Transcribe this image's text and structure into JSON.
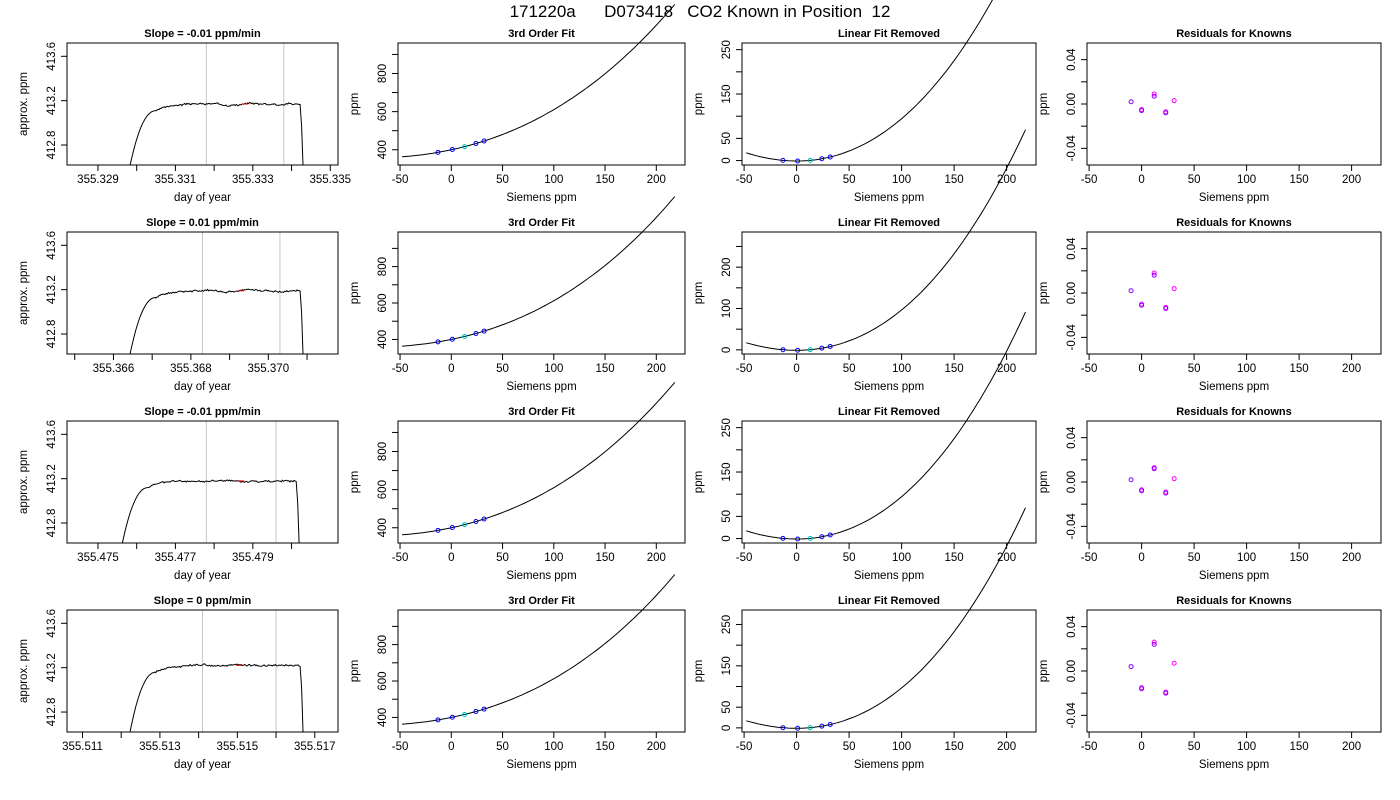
{
  "title": "171220a      D073418   CO2 Known in Position  12",
  "chart_data": {
    "rows": [
      {
        "time_panel": {
          "type": "line",
          "title": "Slope =  -0.01  ppm/min",
          "xlabel": "day of year",
          "ylabel": "approx. ppm",
          "xlim": [
            355.3282,
            355.3352
          ],
          "ylim": [
            412.62,
            413.72
          ],
          "xticks": [
            355.329,
            355.331,
            355.333,
            355.335
          ],
          "xtick_labels": [
            "355.329",
            "355.331",
            "355.333",
            "355.335"
          ],
          "minor_xticks": [
            355.33,
            355.332,
            355.334
          ],
          "yticks": [
            412.8,
            413.2,
            413.6
          ],
          "ytick_labels": [
            "412.8",
            "413.2",
            "413.6"
          ],
          "vlines": [
            355.3318,
            355.3338
          ],
          "rise_start": 355.3298,
          "plateau_start": 355.3305,
          "fall_end": 355.3343,
          "plateau_level": 413.17,
          "seed": 3
        },
        "fit_panel": {
          "type": "line",
          "title": "3rd Order Fit",
          "xlabel": "Siemens ppm",
          "ylabel": "ppm",
          "xlim": [
            -52,
            228
          ],
          "ylim": [
            320,
            960
          ],
          "xticks": [
            -50,
            0,
            50,
            100,
            150,
            200
          ],
          "yticks": [
            400,
            600,
            800
          ],
          "minor_yticks": [
            500,
            700,
            900
          ],
          "curve": {
            "a": 400,
            "b": 1.15,
            "c": 0.0085,
            "d": 1.04e-05,
            "x_from": -48,
            "x_to": 218
          },
          "points_x": [
            -13,
            1,
            13,
            24,
            32
          ]
        },
        "linear_panel": {
          "type": "line",
          "title": "Linear Fit Removed",
          "xlabel": "Siemens ppm",
          "ylabel": "ppm",
          "xlim": [
            -52,
            228
          ],
          "ylim": [
            -10,
            265
          ],
          "xticks": [
            -50,
            0,
            50,
            100,
            150,
            200
          ],
          "yticks": [
            0,
            50,
            150,
            250
          ],
          "minor_yticks": [
            100,
            200
          ],
          "curve": {
            "c": 0.0085,
            "d": 1.04e-05,
            "x_from": -48,
            "x_to": 218
          },
          "points_x": [
            -13,
            1,
            13,
            24,
            32
          ]
        },
        "residual_panel": {
          "type": "scatter",
          "title": "Residuals for Knowns",
          "xlabel": "Siemens ppm",
          "ylabel": "ppm",
          "xlim": [
            -52,
            228
          ],
          "ylim": [
            -0.055,
            0.055
          ],
          "xticks": [
            -50,
            0,
            50,
            100,
            150,
            200
          ],
          "yticks": [
            -0.04,
            0.0,
            0.04
          ],
          "ytick_labels": [
            "-0.04",
            "0.00",
            "0.04"
          ],
          "minor_yticks": [
            -0.02,
            0.02
          ],
          "points": [
            {
              "x": -10,
              "y": 0.002
            },
            {
              "x": 0,
              "y": -0.005
            },
            {
              "x": 0,
              "y": -0.006
            },
            {
              "x": 12,
              "y": 0.009
            },
            {
              "x": 12,
              "y": 0.007
            },
            {
              "x": 23,
              "y": -0.007
            },
            {
              "x": 23,
              "y": -0.008
            },
            {
              "x": 31,
              "y": 0.003
            }
          ]
        }
      },
      {
        "time_panel": {
          "type": "line",
          "title": "Slope =  0.01  ppm/min",
          "xlabel": "day of year",
          "ylabel": "approx. ppm",
          "xlim": [
            355.3648,
            355.3718
          ],
          "ylim": [
            412.62,
            413.72
          ],
          "xticks": [
            355.366,
            355.368,
            355.37
          ],
          "xtick_labels": [
            "355.366",
            "355.368",
            "355.370"
          ],
          "minor_xticks": [
            355.365,
            355.367,
            355.369,
            355.371
          ],
          "yticks": [
            412.8,
            413.2,
            413.6
          ],
          "ytick_labels": [
            "412.8",
            "413.2",
            "413.6"
          ],
          "vlines": [
            355.3683,
            355.3703
          ],
          "rise_start": 355.3664,
          "plateau_start": 355.3671,
          "fall_end": 355.3709,
          "plateau_level": 413.19,
          "seed": 7
        },
        "fit_panel": {
          "type": "line",
          "title": "3rd Order Fit",
          "xlabel": "Siemens ppm",
          "ylabel": "ppm",
          "xlim": [
            -52,
            228
          ],
          "ylim": [
            320,
            990
          ],
          "xticks": [
            -50,
            0,
            50,
            100,
            150,
            200
          ],
          "yticks": [
            400,
            600,
            800
          ],
          "minor_yticks": [
            500,
            700,
            900
          ],
          "curve": {
            "a": 400,
            "b": 1.15,
            "c": 0.0085,
            "d": 1.25e-05,
            "x_from": -48,
            "x_to": 218
          },
          "points_x": [
            -13,
            1,
            13,
            24,
            32
          ]
        },
        "linear_panel": {
          "type": "line",
          "title": "Linear Fit Removed",
          "xlabel": "Siemens ppm",
          "ylabel": "ppm",
          "xlim": [
            -52,
            228
          ],
          "ylim": [
            -10,
            285
          ],
          "xticks": [
            -50,
            0,
            50,
            100,
            150,
            200
          ],
          "yticks": [
            0,
            100,
            200
          ],
          "minor_yticks": [
            50,
            150,
            250
          ],
          "curve": {
            "c": 0.0085,
            "d": 1.25e-05,
            "x_from": -48,
            "x_to": 218
          },
          "points_x": [
            -13,
            1,
            13,
            24,
            32
          ]
        },
        "residual_panel": {
          "type": "scatter",
          "title": "Residuals for Knowns",
          "xlabel": "Siemens ppm",
          "ylabel": "ppm",
          "xlim": [
            -52,
            228
          ],
          "ylim": [
            -0.055,
            0.055
          ],
          "xticks": [
            -50,
            0,
            50,
            100,
            150,
            200
          ],
          "yticks": [
            -0.04,
            0.0,
            0.04
          ],
          "ytick_labels": [
            "-0.04",
            "0.00",
            "0.04"
          ],
          "minor_yticks": [
            -0.02,
            0.02
          ],
          "points": [
            {
              "x": -10,
              "y": 0.002
            },
            {
              "x": 0,
              "y": -0.01
            },
            {
              "x": 0,
              "y": -0.011
            },
            {
              "x": 12,
              "y": 0.018
            },
            {
              "x": 12,
              "y": 0.016
            },
            {
              "x": 23,
              "y": -0.013
            },
            {
              "x": 23,
              "y": -0.014
            },
            {
              "x": 31,
              "y": 0.004
            }
          ]
        }
      },
      {
        "time_panel": {
          "type": "line",
          "title": "Slope =  -0.01  ppm/min",
          "xlabel": "day of year",
          "ylabel": "approx. ppm",
          "xlim": [
            355.4742,
            355.4812
          ],
          "ylim": [
            412.62,
            413.72
          ],
          "xticks": [
            355.475,
            355.477,
            355.479
          ],
          "xtick_labels": [
            "355.475",
            "355.477",
            "355.479"
          ],
          "minor_xticks": [
            355.476,
            355.478,
            355.48
          ],
          "yticks": [
            412.8,
            413.2,
            413.6
          ],
          "ytick_labels": [
            "412.8",
            "413.2",
            "413.6"
          ],
          "vlines": [
            355.4778,
            355.4796
          ],
          "rise_start": 355.4756,
          "plateau_start": 355.4763,
          "fall_end": 355.4802,
          "plateau_level": 413.18,
          "seed": 11
        },
        "fit_panel": {
          "type": "line",
          "title": "3rd Order Fit",
          "xlabel": "Siemens ppm",
          "ylabel": "ppm",
          "xlim": [
            -52,
            228
          ],
          "ylim": [
            320,
            960
          ],
          "xticks": [
            -50,
            0,
            50,
            100,
            150,
            200
          ],
          "yticks": [
            400,
            600,
            800
          ],
          "minor_yticks": [
            500,
            700,
            900
          ],
          "curve": {
            "a": 400,
            "b": 1.15,
            "c": 0.0085,
            "d": 1.04e-05,
            "x_from": -48,
            "x_to": 218
          },
          "points_x": [
            -13,
            1,
            13,
            24,
            32
          ]
        },
        "linear_panel": {
          "type": "line",
          "title": "Linear Fit Removed",
          "xlabel": "Siemens ppm",
          "ylabel": "ppm",
          "xlim": [
            -52,
            228
          ],
          "ylim": [
            -10,
            265
          ],
          "xticks": [
            -50,
            0,
            50,
            100,
            150,
            200
          ],
          "yticks": [
            0,
            50,
            150,
            250
          ],
          "minor_yticks": [
            100,
            200
          ],
          "curve": {
            "c": 0.0085,
            "d": 1.04e-05,
            "x_from": -48,
            "x_to": 218
          },
          "points_x": [
            -13,
            1,
            13,
            24,
            32
          ]
        },
        "residual_panel": {
          "type": "scatter",
          "title": "Residuals for Knowns",
          "xlabel": "Siemens ppm",
          "ylabel": "ppm",
          "xlim": [
            -52,
            228
          ],
          "ylim": [
            -0.055,
            0.055
          ],
          "xticks": [
            -50,
            0,
            50,
            100,
            150,
            200
          ],
          "yticks": [
            -0.04,
            0.0,
            0.04
          ],
          "ytick_labels": [
            "-0.04",
            "0.00",
            "0.04"
          ],
          "minor_yticks": [
            -0.02,
            0.02
          ],
          "points": [
            {
              "x": -10,
              "y": 0.002
            },
            {
              "x": 0,
              "y": -0.007
            },
            {
              "x": 0,
              "y": -0.008
            },
            {
              "x": 12,
              "y": 0.013
            },
            {
              "x": 12,
              "y": 0.012
            },
            {
              "x": 23,
              "y": -0.009
            },
            {
              "x": 23,
              "y": -0.01
            },
            {
              "x": 31,
              "y": 0.003
            }
          ]
        }
      },
      {
        "time_panel": {
          "type": "line",
          "title": "Slope =  0  ppm/min",
          "xlabel": "day of year",
          "ylabel": "approx. ppm",
          "xlim": [
            355.5106,
            355.5176
          ],
          "ylim": [
            412.62,
            413.72
          ],
          "xticks": [
            355.511,
            355.513,
            355.515,
            355.517
          ],
          "xtick_labels": [
            "355.511",
            "355.513",
            "355.515",
            "355.517"
          ],
          "minor_xticks": [
            355.512,
            355.514,
            355.516
          ],
          "yticks": [
            412.8,
            413.2,
            413.6
          ],
          "ytick_labels": [
            "412.8",
            "413.2",
            "413.6"
          ],
          "vlines": [
            355.5141,
            355.516
          ],
          "rise_start": 355.5122,
          "plateau_start": 355.5129,
          "fall_end": 355.5167,
          "plateau_level": 413.22,
          "seed": 17
        },
        "fit_panel": {
          "type": "line",
          "title": "3rd Order Fit",
          "xlabel": "Siemens ppm",
          "ylabel": "ppm",
          "xlim": [
            -52,
            228
          ],
          "ylim": [
            320,
            990
          ],
          "xticks": [
            -50,
            0,
            50,
            100,
            150,
            200
          ],
          "yticks": [
            400,
            600,
            800
          ],
          "minor_yticks": [
            500,
            700,
            900
          ],
          "curve": {
            "a": 400,
            "b": 1.15,
            "c": 0.0085,
            "d": 1.25e-05,
            "x_from": -48,
            "x_to": 218
          },
          "points_x": [
            -13,
            1,
            13,
            24,
            32
          ]
        },
        "linear_panel": {
          "type": "line",
          "title": "Linear Fit Removed",
          "xlabel": "Siemens ppm",
          "ylabel": "ppm",
          "xlim": [
            -52,
            228
          ],
          "ylim": [
            -10,
            285
          ],
          "xticks": [
            -50,
            0,
            50,
            100,
            150,
            200
          ],
          "yticks": [
            0,
            50,
            150,
            250
          ],
          "minor_yticks": [
            100,
            200
          ],
          "curve": {
            "c": 0.0085,
            "d": 1.25e-05,
            "x_from": -48,
            "x_to": 218
          },
          "points_x": [
            -13,
            1,
            13,
            24,
            32
          ]
        },
        "residual_panel": {
          "type": "scatter",
          "title": "Residuals for Knowns",
          "xlabel": "Siemens ppm",
          "ylabel": "ppm",
          "xlim": [
            -52,
            228
          ],
          "ylim": [
            -0.055,
            0.055
          ],
          "xticks": [
            -50,
            0,
            50,
            100,
            150,
            200
          ],
          "yticks": [
            -0.04,
            0.0,
            0.04
          ],
          "ytick_labels": [
            "-0.04",
            "0.00",
            "0.04"
          ],
          "minor_yticks": [
            -0.02,
            0.02
          ],
          "points": [
            {
              "x": -10,
              "y": 0.004
            },
            {
              "x": 0,
              "y": -0.015
            },
            {
              "x": 0,
              "y": -0.016
            },
            {
              "x": 12,
              "y": 0.026
            },
            {
              "x": 12,
              "y": 0.024
            },
            {
              "x": 23,
              "y": -0.019
            },
            {
              "x": 23,
              "y": -0.02
            },
            {
              "x": 31,
              "y": 0.007
            }
          ]
        }
      }
    ],
    "colors": {
      "frame": "#000000",
      "curve": "#000000",
      "vline": "#c8c8c8",
      "fit_point": "#0000ff",
      "fit_point_alt": "#00bfbf",
      "residual_point": "#8b00ff",
      "residual_point_alt": "#ff00ff",
      "highlight": "#ff0000"
    }
  }
}
